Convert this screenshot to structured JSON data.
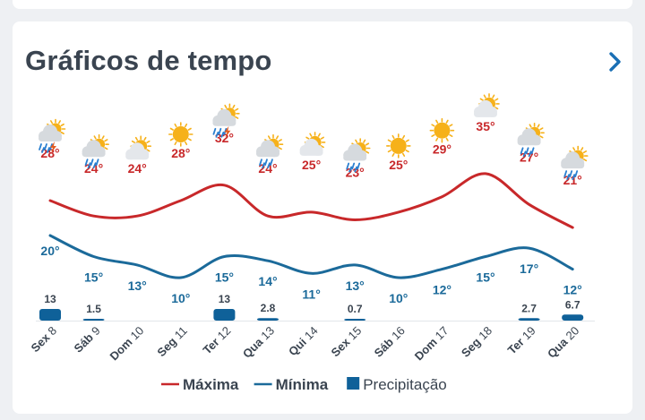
{
  "header": {
    "title": "Gráficos de tempo"
  },
  "colors": {
    "max_line": "#c8282a",
    "min_line": "#1b6a9a",
    "precip_bar": "#0f6199",
    "label_gray": "#3a4450",
    "accent": "#1a6fb5"
  },
  "chart_data": {
    "type": "line",
    "categories": [
      "Sex 8",
      "Sáb 9",
      "Dom 10",
      "Seg 11",
      "Ter 12",
      "Qua 13",
      "Qui 14",
      "Sex 15",
      "Sáb 16",
      "Dom 17",
      "Seg 18",
      "Ter 19",
      "Qua 20"
    ],
    "icons": [
      "sun-cloud-thunderstorm-icon",
      "sun-cloud-rain-icon",
      "sun-cloud-icon",
      "sun-icon",
      "sun-cloud-thunderstorm-icon",
      "sun-cloud-rain-icon",
      "sun-cloud-icon",
      "sun-cloud-rain-icon",
      "sun-icon",
      "sun-icon",
      "sun-cloud-icon",
      "sun-cloud-rain-icon",
      "sun-cloud-rain-icon"
    ],
    "series": [
      {
        "name": "Máxima",
        "values": [
          28,
          24,
          24,
          28,
          32,
          24,
          25,
          23,
          25,
          29,
          35,
          27,
          21
        ],
        "unit": "°"
      },
      {
        "name": "Mínima",
        "values": [
          20,
          15,
          13,
          10,
          15,
          14,
          11,
          13,
          10,
          12,
          15,
          17,
          12
        ],
        "unit": "°"
      },
      {
        "name": "Precipitação",
        "values": [
          13,
          1.5,
          0,
          0,
          13,
          2.8,
          0,
          0.7,
          0,
          0,
          0,
          2.7,
          6.7
        ],
        "labels": [
          "13",
          "1.5",
          "",
          "",
          "13",
          "2.8",
          "",
          "0.7",
          "",
          "",
          "",
          "2.7",
          "6.7"
        ]
      }
    ],
    "legend": {
      "placement": "bottom",
      "items": [
        {
          "label": "Máxima",
          "kind": "line",
          "color": "#c8282a"
        },
        {
          "label": "Mínima",
          "kind": "line",
          "color": "#1b6a9a"
        },
        {
          "label": "Precipitação",
          "kind": "box",
          "color": "#0f6199"
        }
      ]
    }
  }
}
